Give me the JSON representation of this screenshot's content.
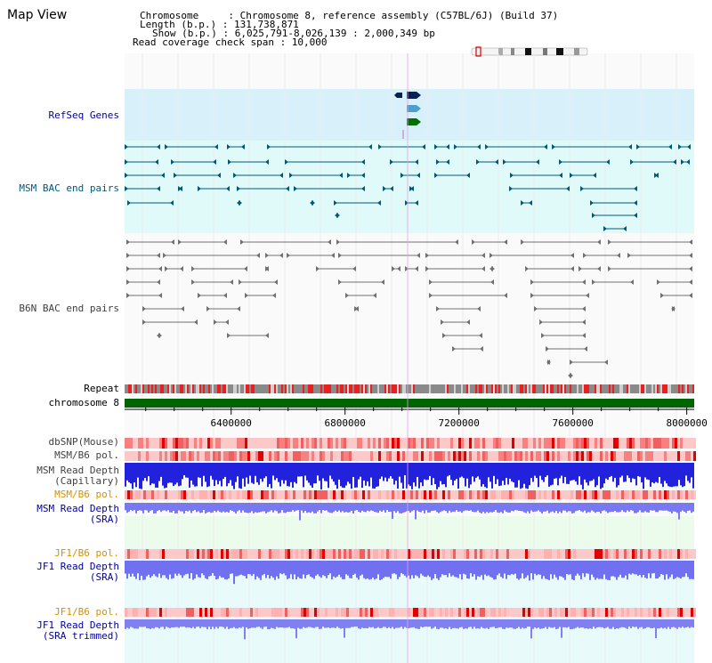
{
  "title": "Map View",
  "header": {
    "chromosome_line": "Chromosome     : Chromosome 8, reference assembly (C57BL/6J) (Build 37)",
    "length_line": "Length (b.p.) : 131,738,871",
    "show_line": "Show (b.p.) : 6,025,791-8,026,139 : 2,000,349 bp",
    "coverage_line": "Read coverage check span : 10,000"
  },
  "tracks": {
    "refseq": "RefSeq Genes",
    "msm_bac": "MSM BAC end pairs",
    "b6n_bac": "B6N BAC end pairs",
    "repeat": "Repeat",
    "chromosome": "chromosome 8",
    "dbsnp": "dbSNP(Mouse)",
    "msm_b6_pol": "MSM/B6 pol.",
    "msm_read_depth_1": "MSM Read Depth",
    "msm_read_depth_1b": "(Capillary)",
    "msm_b6_pol_2": "MSM/B6 pol.",
    "msm_read_depth_2": "MSM Read Depth",
    "msm_read_depth_2b": "(SRA)",
    "jf1_b6_pol": "JF1/B6 pol.",
    "jf1_read_depth": "JF1 Read Depth",
    "jf1_read_depth_b": "(SRA)",
    "jf1_b6_pol_2": "JF1/B6 pol.",
    "jf1_read_depth_2": "JF1 Read Depth",
    "jf1_read_depth_2b": "(SRA trimmed)"
  },
  "axis": {
    "ticks": [
      {
        "value": 6400000,
        "label": "6400000"
      },
      {
        "value": 6800000,
        "label": "6800000"
      },
      {
        "value": 7200000,
        "label": "7200000"
      },
      {
        "value": 7600000,
        "label": "7600000"
      },
      {
        "value": 8000000,
        "label": "8000000"
      }
    ],
    "start_bp": 6025791,
    "end_bp": 8026139
  },
  "colors": {
    "refseq_bg": "#d8f0fa",
    "msm_bg": "#e0fafa",
    "msm_feature": "#00587a",
    "b6n_feature": "#707070",
    "chromosome": "#006400",
    "snp_red": "#ff5050",
    "depth_blue": "#2020e0",
    "depth_light": "#7070ff"
  }
}
